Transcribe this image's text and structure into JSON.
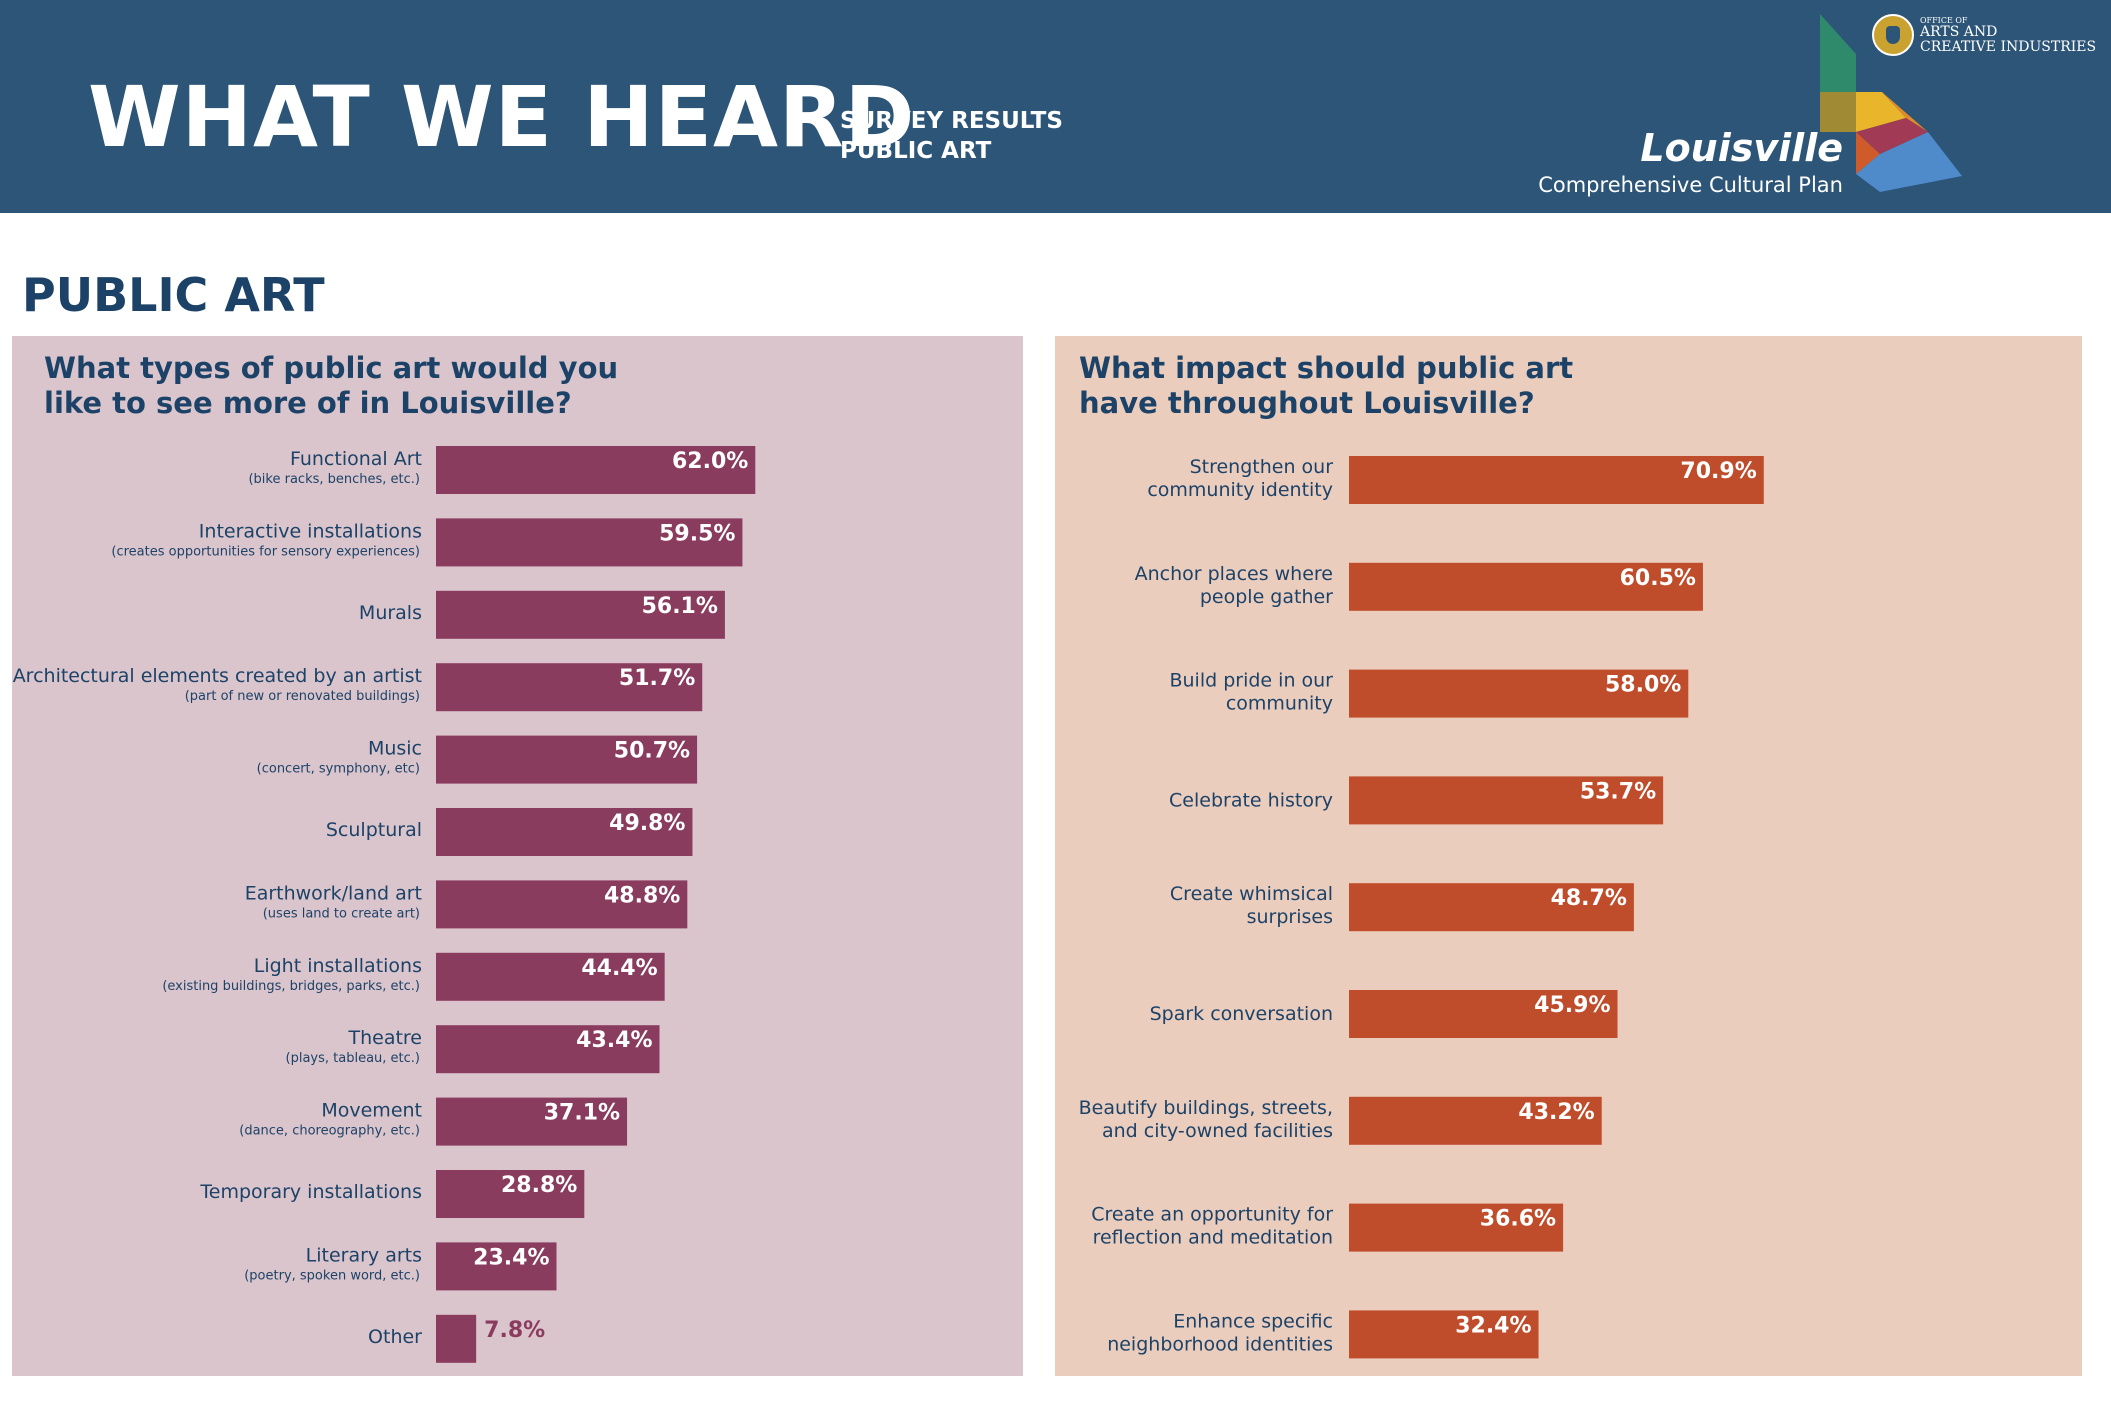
{
  "header": {
    "title": "WHAT WE HEARD",
    "subtitle_line1": "SURVEY RESULTS",
    "subtitle_line2": "PUBLIC ART",
    "brand_name": "Louisville",
    "brand_sub": "Comprehensive Cultural Plan",
    "office_small": "OFFICE OF",
    "office_line1": "ARTS AND",
    "office_line2": "CREATIVE INDUSTRIES"
  },
  "section_title": "PUBLIC ART",
  "colors": {
    "header_bg": "#2c5577",
    "left_panel_bg": "#dbc5cc",
    "right_panel_bg": "#ebcdbe",
    "left_bar": "#8a3c5e",
    "right_bar": "#bf4c2a",
    "text_dark": "#1c4268",
    "value_light": "#ffffff"
  },
  "chart_data": [
    {
      "type": "bar",
      "orientation": "horizontal",
      "title": "What types of public art would you like to see more of in Louisville?",
      "title_lines": [
        "What types of public art would you",
        "like to see more of in Louisville?"
      ],
      "value_suffix": "%",
      "xlim": [
        0,
        100
      ],
      "categories": [
        {
          "label": "Functional Art",
          "sub": "(bike racks, benches, etc.)",
          "value": 62.0
        },
        {
          "label": "Interactive installations",
          "sub": "(creates opportunities for sensory experiences)",
          "value": 59.5
        },
        {
          "label": "Murals",
          "sub": "",
          "value": 56.1
        },
        {
          "label": "Architectural elements created by an artist",
          "sub": "(part of new or renovated buildings)",
          "value": 51.7
        },
        {
          "label": "Music",
          "sub": "(concert, symphony, etc)",
          "value": 50.7
        },
        {
          "label": "Sculptural",
          "sub": "",
          "value": 49.8
        },
        {
          "label": "Earthwork/land art",
          "sub": "(uses land to create art)",
          "value": 48.8
        },
        {
          "label": "Light installations",
          "sub": "(existing buildings, bridges, parks, etc.)",
          "value": 44.4
        },
        {
          "label": "Theatre",
          "sub": "(plays, tableau, etc.)",
          "value": 43.4
        },
        {
          "label": "Movement",
          "sub": "(dance, choreography, etc.)",
          "value": 37.1
        },
        {
          "label": "Temporary installations",
          "sub": "",
          "value": 28.8
        },
        {
          "label": "Literary arts",
          "sub": "(poetry, spoken word, etc.)",
          "value": 23.4
        },
        {
          "label": "Other",
          "sub": "",
          "value": 7.8
        }
      ]
    },
    {
      "type": "bar",
      "orientation": "horizontal",
      "title": "What impact should public art have throughout Louisville?",
      "title_lines": [
        "What impact should public art",
        "have throughout Louisville?"
      ],
      "value_suffix": "%",
      "xlim": [
        0,
        100
      ],
      "categories": [
        {
          "lines": [
            "Strengthen our",
            "community identity"
          ],
          "value": 70.9
        },
        {
          "lines": [
            "Anchor places where",
            "people gather"
          ],
          "value": 60.5
        },
        {
          "lines": [
            "Build pride in our",
            "community"
          ],
          "value": 58.0
        },
        {
          "lines": [
            "Celebrate history"
          ],
          "value": 53.7
        },
        {
          "lines": [
            "Create whimsical",
            "surprises"
          ],
          "value": 48.7
        },
        {
          "lines": [
            "Spark conversation"
          ],
          "value": 45.9
        },
        {
          "lines": [
            "Beautify buildings, streets,",
            "and city-owned facilities"
          ],
          "value": 43.2
        },
        {
          "lines": [
            "Create an opportunity for",
            "reflection and meditation"
          ],
          "value": 36.6
        },
        {
          "lines": [
            "Enhance specific",
            "neighborhood identities"
          ],
          "value": 32.4
        }
      ]
    }
  ]
}
